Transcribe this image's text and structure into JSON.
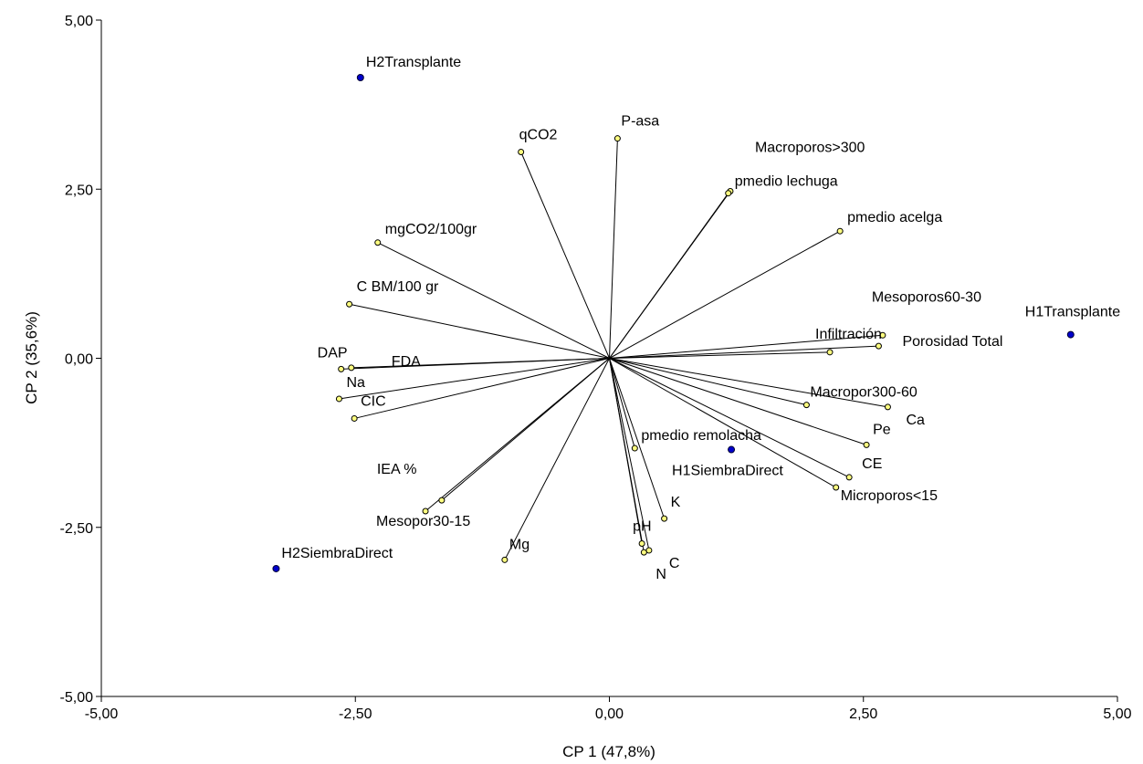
{
  "chart_data": {
    "type": "scatter",
    "subtype": "biplot",
    "xlabel": "CP 1 (47,8%)",
    "ylabel": "CP 2 (35,6%)",
    "xlim": [
      -5,
      5
    ],
    "ylim": [
      -5,
      5
    ],
    "xticks": [
      "-5,00",
      "-2,50",
      "0,00",
      "2,50",
      "5,00"
    ],
    "yticks": [
      "-5,00",
      "-2,50",
      "0,00",
      "2,50",
      "5,00"
    ],
    "grid": false,
    "colors": {
      "variables": "#ffff80",
      "observations": "#0000cc",
      "vectors": "#000000"
    },
    "variables": [
      {
        "name": "qCO2",
        "x": -0.87,
        "y": 3.05
      },
      {
        "name": "P-asa",
        "x": 0.08,
        "y": 3.25
      },
      {
        "name": "Macroporos>300",
        "x": 1.19,
        "y": 2.47
      },
      {
        "name": "pmedio lechuga",
        "x": 1.17,
        "y": 2.44
      },
      {
        "name": "pmedio acelga",
        "x": 2.27,
        "y": 1.88
      },
      {
        "name": "mgCO2/100gr",
        "x": -2.28,
        "y": 1.71
      },
      {
        "name": "C BM/100 gr",
        "x": -2.56,
        "y": 0.8
      },
      {
        "name": "Mesoporos60-30",
        "x": 2.69,
        "y": 0.34
      },
      {
        "name": "Infiltración",
        "x": 2.17,
        "y": 0.09
      },
      {
        "name": "Porosidad Total",
        "x": 2.65,
        "y": 0.18
      },
      {
        "name": "DAP",
        "x": -2.64,
        "y": -0.16
      },
      {
        "name": "FDA",
        "x": -2.54,
        "y": -0.14
      },
      {
        "name": "Na",
        "x": -2.66,
        "y": -0.6
      },
      {
        "name": "CIC",
        "x": -2.51,
        "y": -0.89
      },
      {
        "name": "Macropor300-60",
        "x": 1.94,
        "y": -0.69
      },
      {
        "name": "Ca",
        "x": 2.74,
        "y": -0.72
      },
      {
        "name": "Pe",
        "x": 2.53,
        "y": -1.28
      },
      {
        "name": "pmedio remolacha",
        "x": 0.25,
        "y": -1.33
      },
      {
        "name": "CE",
        "x": 2.36,
        "y": -1.76
      },
      {
        "name": "Microporos<15",
        "x": 2.23,
        "y": -1.91
      },
      {
        "name": "IEA %",
        "x": -1.65,
        "y": -2.1
      },
      {
        "name": "Mesopor30-15",
        "x": -1.81,
        "y": -2.26
      },
      {
        "name": "pH",
        "x": 0.32,
        "y": -2.74
      },
      {
        "name": "K",
        "x": 0.54,
        "y": -2.37
      },
      {
        "name": "C",
        "x": 0.39,
        "y": -2.84
      },
      {
        "name": "N",
        "x": 0.34,
        "y": -2.87
      },
      {
        "name": "Mg",
        "x": -1.03,
        "y": -2.98
      }
    ],
    "observations": [
      {
        "name": "H2Transplante",
        "x": -2.45,
        "y": 4.15
      },
      {
        "name": "H1Transplante",
        "x": 4.54,
        "y": 0.35
      },
      {
        "name": "H1SiembraDirect",
        "x": 1.2,
        "y": -1.35
      },
      {
        "name": "H2SiembraDirect",
        "x": -3.28,
        "y": -3.11
      }
    ]
  }
}
